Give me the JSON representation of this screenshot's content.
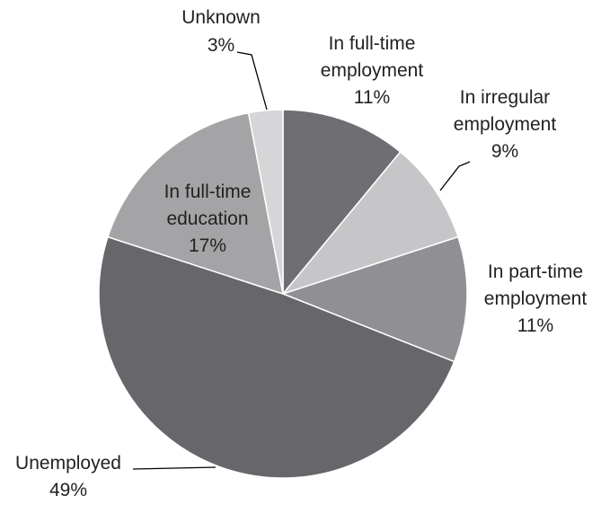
{
  "chart_data": {
    "type": "pie",
    "title": "",
    "slices": [
      {
        "label": "In full-time employment",
        "value": 11,
        "value_label": "11%",
        "color": "#6f6f73"
      },
      {
        "label": "In irregular employment",
        "value": 9,
        "value_label": "9%",
        "color": "#c6c6c8"
      },
      {
        "label": "In part-time employment",
        "value": 11,
        "value_label": "11%",
        "color": "#909094"
      },
      {
        "label": "Unemployed",
        "value": 49,
        "value_label": "49%",
        "color": "#67676b"
      },
      {
        "label": "In full-time education",
        "value": 17,
        "value_label": "17%",
        "color": "#a4a4a7"
      },
      {
        "label": "Unknown",
        "value": 3,
        "value_label": "3%",
        "color": "#d6d6d8"
      }
    ]
  },
  "labels": [
    {
      "lines": [
        "In full-time",
        "employment",
        "11%"
      ]
    },
    {
      "lines": [
        "In irregular",
        "employment",
        "9%"
      ]
    },
    {
      "lines": [
        "In part-time",
        "employment",
        "11%"
      ]
    },
    {
      "lines": [
        "Unemployed",
        "49%"
      ]
    },
    {
      "lines": [
        "In full-time",
        "education",
        "17%"
      ]
    },
    {
      "lines": [
        "Unknown",
        "3%"
      ]
    }
  ]
}
